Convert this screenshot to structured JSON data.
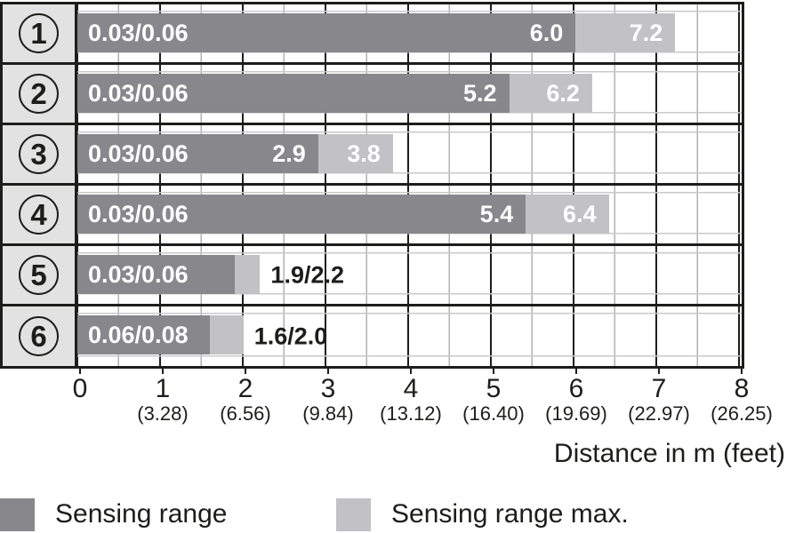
{
  "chart_data": {
    "type": "bar",
    "orientation": "horizontal",
    "x_axis_title": "Distance in m (feet)",
    "xlim": [
      0,
      8
    ],
    "grid": true,
    "legend_position": "bottom",
    "x_ticks": [
      {
        "m": "0",
        "feet": ""
      },
      {
        "m": "1",
        "feet": "(3.28)"
      },
      {
        "m": "2",
        "feet": "(6.56)"
      },
      {
        "m": "3",
        "feet": "(9.84)"
      },
      {
        "m": "4",
        "feet": "(13.12)"
      },
      {
        "m": "5",
        "feet": "(16.40)"
      },
      {
        "m": "6",
        "feet": "(19.69)"
      },
      {
        "m": "7",
        "feet": "(22.97)"
      },
      {
        "m": "8",
        "feet": "(26.25)"
      }
    ],
    "series": [
      {
        "name": "Sensing range",
        "color": "#87878c",
        "values": [
          6.0,
          5.2,
          2.9,
          5.4,
          1.9,
          1.6
        ]
      },
      {
        "name": "Sensing range max.",
        "color": "#c2c2c5",
        "values": [
          7.2,
          6.2,
          3.8,
          6.4,
          2.2,
          2.0
        ]
      }
    ],
    "rows": [
      {
        "id": "1",
        "blind_zone_label": "0.03/0.06",
        "sensing_range_m": 6.0,
        "sensing_range_label": "6.0",
        "sensing_range_max_m": 7.2,
        "sensing_range_max_label": "7.2",
        "outside_label": ""
      },
      {
        "id": "2",
        "blind_zone_label": "0.03/0.06",
        "sensing_range_m": 5.2,
        "sensing_range_label": "5.2",
        "sensing_range_max_m": 6.2,
        "sensing_range_max_label": "6.2",
        "outside_label": ""
      },
      {
        "id": "3",
        "blind_zone_label": "0.03/0.06",
        "sensing_range_m": 2.9,
        "sensing_range_label": "2.9",
        "sensing_range_max_m": 3.8,
        "sensing_range_max_label": "3.8",
        "outside_label": ""
      },
      {
        "id": "4",
        "blind_zone_label": "0.03/0.06",
        "sensing_range_m": 5.4,
        "sensing_range_label": "5.4",
        "sensing_range_max_m": 6.4,
        "sensing_range_max_label": "6.4",
        "outside_label": ""
      },
      {
        "id": "5",
        "blind_zone_label": "0.03/0.06",
        "sensing_range_m": 1.9,
        "sensing_range_label": "",
        "sensing_range_max_m": 2.2,
        "sensing_range_max_label": "",
        "outside_label": "1.9/2.2"
      },
      {
        "id": "6",
        "blind_zone_label": "0.06/0.08",
        "sensing_range_m": 1.6,
        "sensing_range_label": "",
        "sensing_range_max_m": 2.0,
        "sensing_range_max_label": "",
        "outside_label": "1.6/2.0"
      }
    ],
    "legend": [
      {
        "label": "Sensing range",
        "color": "#87878c"
      },
      {
        "label": "Sensing range max.",
        "color": "#c2c2c5"
      }
    ]
  },
  "colors": {
    "sensing_range": "#87878c",
    "sensing_range_max": "#c2c2c5",
    "row_label_bg": "#e2e2e2",
    "grid_major": "#1d1d1b",
    "grid_minor_v": "#b2b2b2",
    "grid_minor_h": "#c9c9c9",
    "text": "#1d1d1b",
    "bar_text": "#ffffff"
  }
}
